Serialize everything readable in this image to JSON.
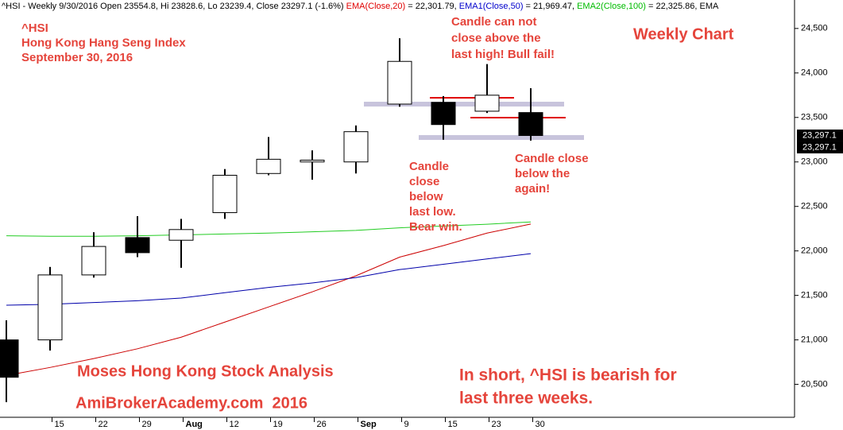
{
  "chart_data": {
    "type": "candlestick",
    "header": [
      {
        "text": "^HSI - Weekly 9/30/2016 Open 23554.8, Hi 23828.6, Lo 23239.4, Close 23297.1 (-1.6%) ",
        "color": "#000000"
      },
      {
        "text": "EMA(Close,20)",
        "color": "#e00000"
      },
      {
        "text": " = 22,301.79, ",
        "color": "#000000"
      },
      {
        "text": "EMA1(Close,50)",
        "color": "#0000cc"
      },
      {
        "text": " = 21,969.47, ",
        "color": "#000000"
      },
      {
        "text": "EMA2(Close,100)",
        "color": "#00bb00"
      },
      {
        "text": " = 22,325.86, EMA",
        "color": "#000000"
      }
    ],
    "categories": [
      null,
      "15",
      "22",
      "29",
      "Aug",
      "12",
      "19",
      "26",
      "Sep",
      "9",
      "15",
      "23",
      "30"
    ],
    "open": [
      21000,
      21000,
      21730,
      22150,
      22120,
      22430,
      22870,
      23000,
      23000,
      23650,
      23670,
      23570,
      23554.8
    ],
    "high": [
      21220,
      21820,
      22210,
      22390,
      22360,
      22920,
      23280,
      23130,
      23410,
      24390,
      23740,
      24100,
      23828.6
    ],
    "low": [
      20300,
      20880,
      21700,
      21930,
      21810,
      22360,
      22850,
      22800,
      22870,
      23620,
      23250,
      23550,
      23239.4
    ],
    "close": [
      20580,
      21730,
      22050,
      21980,
      22240,
      22850,
      23030,
      23020,
      23340,
      24130,
      23420,
      23750,
      23297.1
    ],
    "up_color": "#ffffff",
    "down_color": "#000000",
    "series": [
      {
        "name": "EMA(Close,20)",
        "color": "#cc0000",
        "values": [
          20600,
          20690,
          20790,
          20900,
          21030,
          21200,
          21370,
          21540,
          21720,
          21930,
          22060,
          22200,
          22301.79
        ]
      },
      {
        "name": "EMA1(Close,50)",
        "color": "#0000aa",
        "values": [
          21390,
          21400,
          21420,
          21440,
          21470,
          21530,
          21590,
          21640,
          21700,
          21790,
          21850,
          21910,
          21969.47
        ]
      },
      {
        "name": "EMA2(Close,100)",
        "color": "#22cc22",
        "values": [
          22170,
          22165,
          22165,
          22170,
          22180,
          22190,
          22200,
          22215,
          22230,
          22260,
          22280,
          22300,
          22325.86
        ]
      }
    ],
    "ylim": [
      20130,
      24820
    ],
    "yticks": [
      {
        "value": 20500,
        "label": "20,500"
      },
      {
        "value": 21000,
        "label": "21,000"
      },
      {
        "value": 21500,
        "label": "21,500"
      },
      {
        "value": 22000,
        "label": "22,000"
      },
      {
        "value": 22500,
        "label": "22,500"
      },
      {
        "value": 23000,
        "label": "23,000"
      },
      {
        "value": 23500,
        "label": "23,500"
      },
      {
        "value": 24000,
        "label": "24,000"
      },
      {
        "value": 24500,
        "label": "24,500"
      }
    ],
    "price_labels": [
      "23,297.1",
      "23,297.1"
    ],
    "annotations": [
      [
        "^HSI",
        "Hong Kong Hang Seng Index",
        "September 30, 2016"
      ],
      [
        "Weekly Chart"
      ],
      [
        "Candle can not",
        "close above the",
        "last high! Bull fail!"
      ],
      [
        "Candle",
        "close",
        "below",
        "last low.",
        "Bear win."
      ],
      [
        "Candle close",
        "below the",
        "again!"
      ],
      [
        "Moses Hong Kong Stock Analysis"
      ],
      [
        "AmiBrokerAcademy.com  2016"
      ],
      [
        "In short, ^HSI is bearish for",
        "last three weeks."
      ]
    ]
  }
}
